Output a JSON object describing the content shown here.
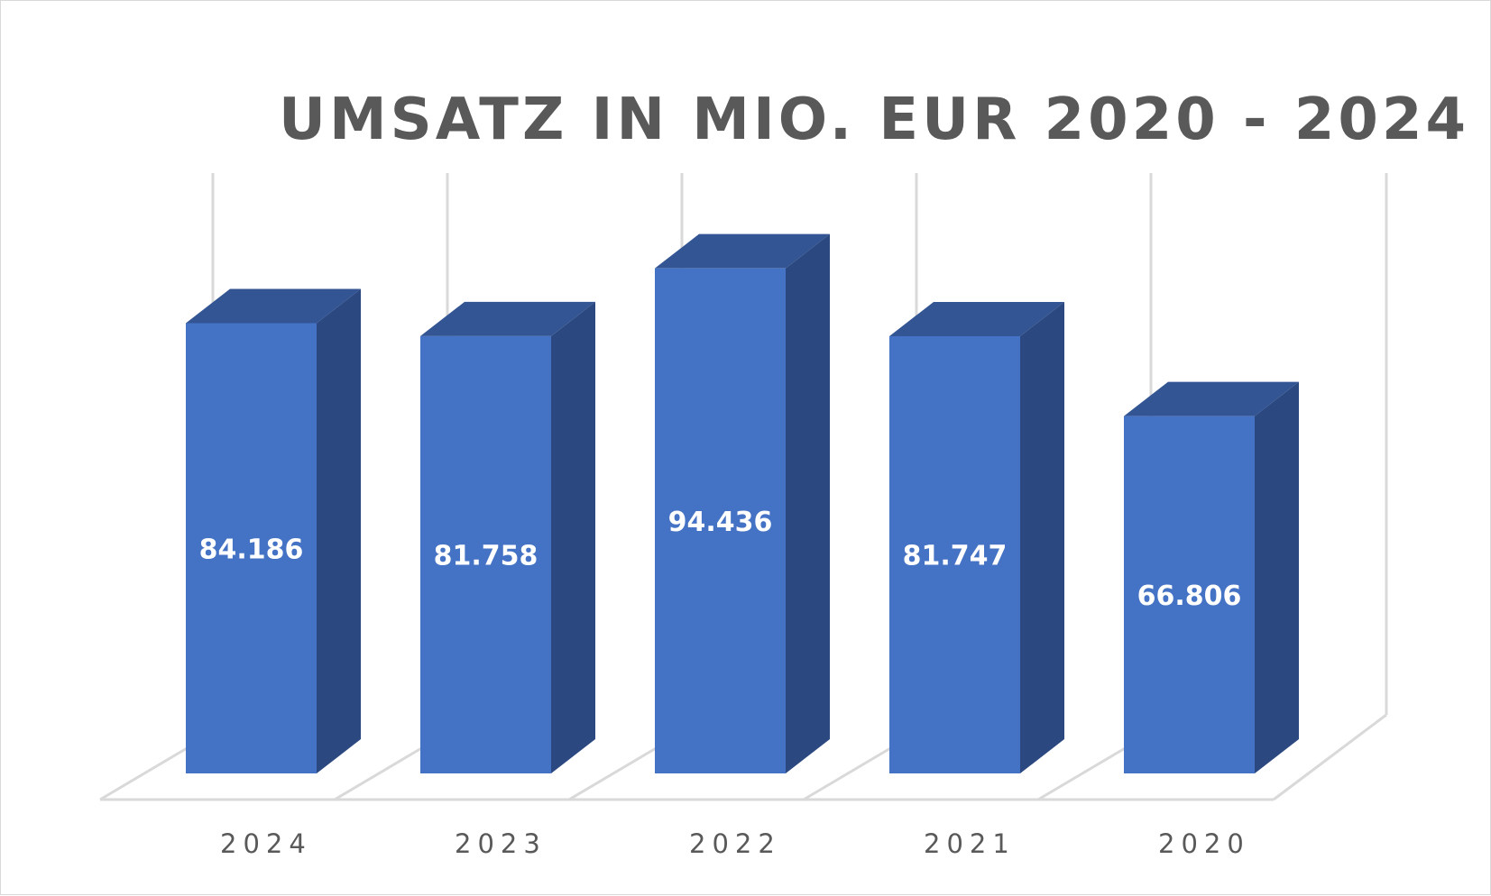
{
  "chart_data": {
    "type": "bar",
    "title": "UMSATZ IN MIO. EUR 2020 - 2024",
    "categories": [
      "2024",
      "2023",
      "2022",
      "2021",
      "2020"
    ],
    "values": [
      84186,
      81758,
      94436,
      81747,
      66806
    ],
    "value_labels": [
      "84.186",
      "81.758",
      "94.436",
      "81.747",
      "66.806"
    ],
    "three_d": true,
    "grid": false,
    "legend": "none",
    "colors": {
      "front": "#4472c4",
      "side": "#2b4880",
      "top": "#335593",
      "floor_line": "#d9d9d9",
      "text": "#595959"
    }
  }
}
